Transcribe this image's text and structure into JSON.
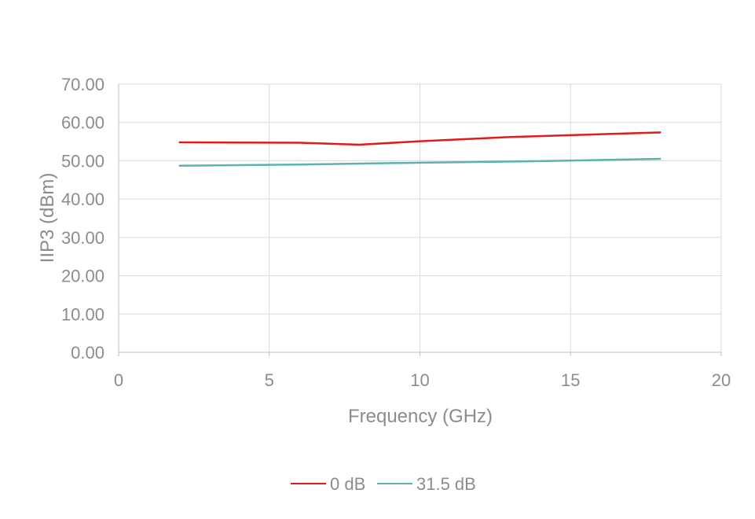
{
  "chart_data": {
    "type": "line",
    "title": "",
    "xlabel": "Frequency (GHz)",
    "ylabel": "IIP3 (dBm)",
    "xlim": [
      0,
      20
    ],
    "ylim": [
      0,
      70
    ],
    "xticks": [
      0,
      5,
      10,
      15,
      20
    ],
    "xtick_labels": [
      "0",
      "5",
      "10",
      "15",
      "20"
    ],
    "yticks": [
      0,
      10,
      20,
      30,
      40,
      50,
      60,
      70
    ],
    "ytick_labels": [
      "0.00",
      "10.00",
      "20.00",
      "30.00",
      "40.00",
      "50.00",
      "60.00",
      "70.00"
    ],
    "grid": true,
    "legend_position": "bottom",
    "series": [
      {
        "name": "0 dB",
        "color": "#e31a1c",
        "x": [
          2,
          6,
          8,
          10,
          13,
          18
        ],
        "y": [
          54.8,
          54.7,
          54.2,
          55.1,
          56.2,
          57.4
        ]
      },
      {
        "name": "31.5 dB",
        "color": "#5ab4ac",
        "x": [
          2,
          6,
          10,
          14,
          18
        ],
        "y": [
          48.7,
          49.0,
          49.5,
          49.9,
          50.5
        ]
      }
    ]
  }
}
